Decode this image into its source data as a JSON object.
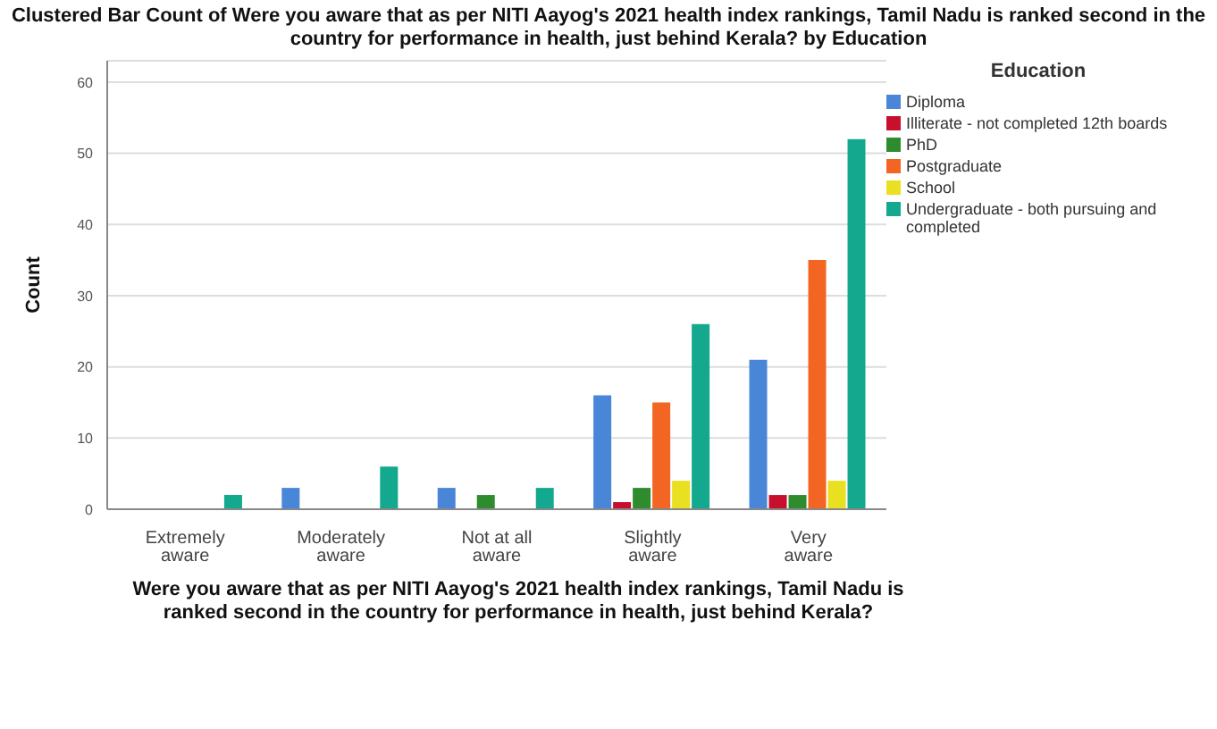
{
  "chart_data": {
    "type": "bar",
    "title": "Clustered Bar Count of Were you aware that as per NITI Aayog's 2021 health index rankings, Tamil Nadu is ranked second in the country for performance in health, just behind Kerala? by Education",
    "xlabel": "Were you aware that as per NITI Aayog's 2021 health index rankings, Tamil Nadu is ranked second in the country for performance in health, just behind Kerala?",
    "ylabel": "Count",
    "legend_title": "Education",
    "categories": [
      "Extremely aware",
      "Moderately aware",
      "Not at all aware",
      "Slightly aware",
      "Very aware"
    ],
    "series": [
      {
        "name": "Diploma",
        "color": "#4a86d8",
        "values": [
          null,
          3,
          3,
          16,
          21
        ]
      },
      {
        "name": "Illiterate - not completed 12th boards",
        "color": "#c8102e",
        "values": [
          null,
          null,
          null,
          1,
          2
        ]
      },
      {
        "name": "PhD",
        "color": "#2e8b2e",
        "values": [
          null,
          null,
          2,
          3,
          2
        ]
      },
      {
        "name": "Postgraduate",
        "color": "#f26522",
        "values": [
          null,
          null,
          null,
          15,
          35
        ]
      },
      {
        "name": "School",
        "color": "#e8e020",
        "values": [
          null,
          null,
          null,
          4,
          4
        ]
      },
      {
        "name": "Undergraduate - both pursuing and completed",
        "color": "#14a88e",
        "values": [
          2,
          6,
          3,
          26,
          52
        ]
      }
    ],
    "ylim": [
      0,
      63
    ],
    "yticks": [
      0,
      10,
      20,
      30,
      40,
      50,
      60
    ],
    "grid": "y",
    "legend": "top right"
  }
}
